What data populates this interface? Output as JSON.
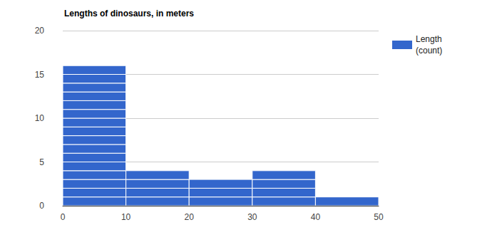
{
  "chart_data": {
    "type": "histogram",
    "title": "Lengths of dinosaurs, in meters",
    "bins": [
      0,
      10,
      20,
      30,
      40,
      50
    ],
    "series": [
      {
        "name": "Length (count)",
        "color": "#3366cc",
        "values": [
          16,
          4,
          3,
          4,
          1
        ]
      }
    ],
    "xlim": [
      0,
      50
    ],
    "xticks": [
      0,
      10,
      20,
      30,
      40,
      50
    ],
    "ylim": [
      0,
      20
    ],
    "yticks": [
      0,
      5,
      10,
      15,
      20
    ],
    "grid": true,
    "legend": "right"
  }
}
